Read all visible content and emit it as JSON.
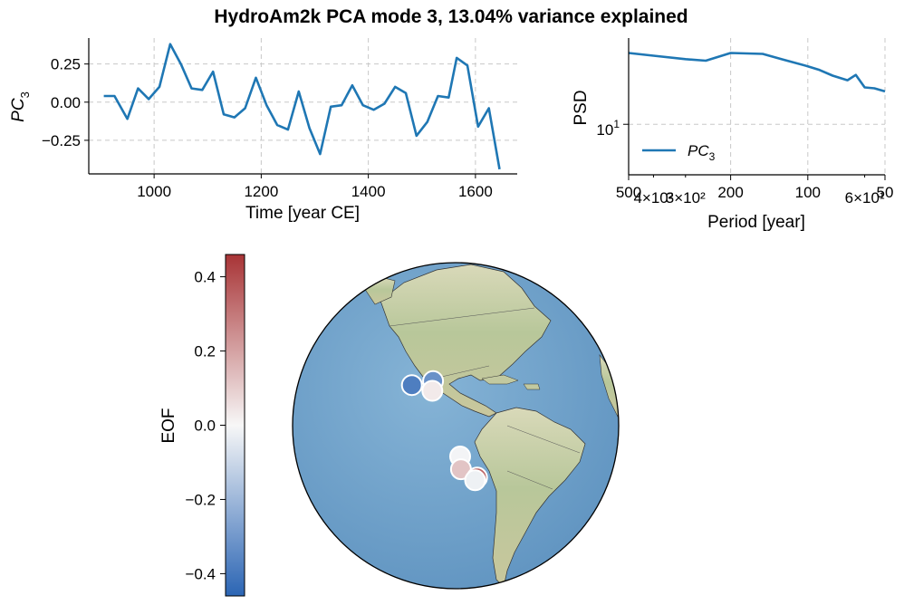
{
  "figure": {
    "title": "HydroAm2k PCA mode 3, 13.04% variance explained"
  },
  "chart_data": [
    {
      "type": "line",
      "name": "pc-timeseries",
      "xlabel": "Time [year CE]",
      "ylabel_base": "PC",
      "ylabel_sub": "3",
      "xlim": [
        878,
        1678
      ],
      "ylim": [
        -0.47,
        0.42
      ],
      "xticks": [
        1000,
        1200,
        1400,
        1600
      ],
      "yticks": [
        0.25,
        0.0,
        -0.25
      ],
      "ytick_labels": [
        "0.25",
        "0.00",
        "−0.25"
      ],
      "grid": true,
      "color": "#1f77b4",
      "x": [
        906,
        926,
        950,
        970,
        990,
        1010,
        1030,
        1050,
        1070,
        1090,
        1110,
        1130,
        1150,
        1170,
        1190,
        1210,
        1230,
        1250,
        1270,
        1290,
        1310,
        1330,
        1350,
        1370,
        1390,
        1410,
        1430,
        1450,
        1470,
        1490,
        1510,
        1530,
        1550,
        1565,
        1585,
        1605,
        1625,
        1645
      ],
      "y": [
        0.04,
        0.04,
        -0.11,
        0.09,
        0.02,
        0.1,
        0.38,
        0.25,
        0.09,
        0.08,
        0.2,
        -0.08,
        -0.1,
        -0.04,
        0.16,
        -0.02,
        -0.15,
        -0.18,
        0.07,
        -0.17,
        -0.34,
        -0.03,
        -0.02,
        0.11,
        -0.02,
        -0.05,
        -0.01,
        0.1,
        0.06,
        -0.22,
        -0.13,
        0.04,
        0.03,
        0.29,
        0.24,
        -0.16,
        -0.04,
        -0.44
      ]
    },
    {
      "type": "line",
      "name": "psd",
      "xlabel": "Period [year]",
      "ylabel": "PSD",
      "xscale": "log-reversed",
      "yscale": "log",
      "xlim": [
        500,
        50
      ],
      "ylim": [
        3.2,
        70
      ],
      "major_xticks": [
        500,
        200,
        100,
        50
      ],
      "major_xtick_labels": [
        "500",
        "200",
        "100",
        "50"
      ],
      "minor_xticks": [
        400,
        300,
        60
      ],
      "minor_xtick_labels": [
        "4×10²",
        "3×10²",
        "6×10¹"
      ],
      "yticks": [
        10
      ],
      "ytick_base": "10",
      "ytick_exp": "1",
      "grid": true,
      "color": "#1f77b4",
      "legend": {
        "label_base": "PC",
        "label_sub": "3",
        "position": "lower-left"
      },
      "period": [
        500,
        400,
        300,
        250,
        200,
        150,
        125,
        100,
        90,
        80,
        70,
        65,
        60,
        55,
        50
      ],
      "psd": [
        50,
        47,
        43.5,
        42,
        50,
        49,
        43,
        37,
        34,
        30,
        27,
        30.5,
        23,
        22.5,
        21
      ]
    },
    {
      "type": "map",
      "name": "eof-map",
      "projection": "orthographic",
      "center": {
        "lon": -80,
        "lat": 5
      },
      "colorbar": {
        "label": "EOF",
        "range": [
          -0.46,
          0.46
        ],
        "ticks": [
          0.4,
          0.2,
          0.0,
          -0.2,
          -0.4
        ],
        "tick_labels": [
          "0.4",
          "0.2",
          "0.0",
          "−0.2",
          "−0.4"
        ],
        "color_low": "#2b65b4",
        "color_mid": "#f7f7f7",
        "color_high": "#a83436"
      },
      "sites": [
        {
          "lon": -88.5,
          "lat": 20.8,
          "eof": -0.32
        },
        {
          "lon": -96.5,
          "lat": 19.2,
          "eof": -0.38
        },
        {
          "lon": -88.6,
          "lat": 17.3,
          "eof": 0.03
        },
        {
          "lon": -78.4,
          "lat": -5.9,
          "eof": -0.01
        },
        {
          "lon": -78.1,
          "lat": -10.5,
          "eof": 0.12
        },
        {
          "lon": -72.2,
          "lat": -13.6,
          "eof": 0.34
        },
        {
          "lon": -72.9,
          "lat": -14.6,
          "eof": -0.02
        }
      ]
    }
  ]
}
